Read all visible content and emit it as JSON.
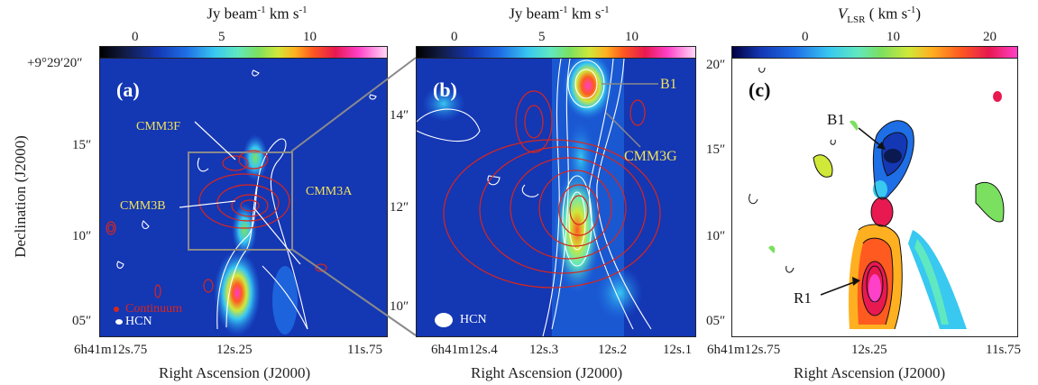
{
  "panels": {
    "a": {
      "label": "(a)",
      "colorbar": {
        "title_main": "Jy beam",
        "title_exp": "-1",
        "title_unit": " km s",
        "title_exp2": "-1",
        "ticks": [
          "0",
          "5",
          "10"
        ]
      },
      "sources": [
        "CMM3F",
        "CMM3A",
        "CMM3B"
      ],
      "legend": {
        "continuum": "Continuum",
        "hcn": "HCN"
      },
      "yticks": [
        "+9°29′20″",
        "15″",
        "10″",
        "05″"
      ],
      "xticks": [
        "6h41m12s.75",
        "12s.25",
        "11s.75"
      ]
    },
    "b": {
      "label": "(b)",
      "colorbar": {
        "title_main": "Jy beam",
        "title_exp": "-1",
        "title_unit": " km s",
        "title_exp2": "-1",
        "ticks": [
          "0",
          "5",
          "10"
        ]
      },
      "sources": [
        "B1",
        "CMM3G"
      ],
      "legend": {
        "hcn": "HCN"
      },
      "yticks": [
        "14″",
        "12″",
        "10″"
      ],
      "xticks": [
        "6h41m12s.4",
        "12s.3",
        "12s.2",
        "12s.1"
      ]
    },
    "c": {
      "label": "(c)",
      "colorbar": {
        "title_main": "V",
        "title_sub": "LSR",
        "title_unit": " ( km s",
        "title_exp": "-1",
        "title_close": ")",
        "ticks": [
          "0",
          "10",
          "20"
        ]
      },
      "sources": [
        "B1",
        "R1"
      ],
      "yticks": [
        "20″",
        "15″",
        "10″",
        "05″"
      ],
      "xticks": [
        "6h41m12s.75",
        "12s.25",
        "11s.75"
      ]
    }
  },
  "axes": {
    "ylabel": "Declination (J2000)",
    "xlabel": "Right Ascension (J2000)"
  },
  "colors": {
    "background_map": "#1437b4",
    "contour_red": "#d9261c",
    "contour_white": "#ffffff",
    "box_gray": "#8a8a8a"
  }
}
